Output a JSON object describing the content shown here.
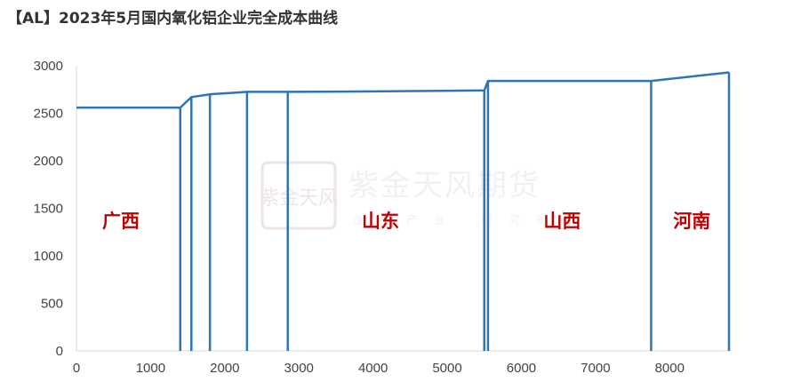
{
  "title": "【AL】2023年5月国内氧化铝企业完全成本曲线",
  "watermark": {
    "logo_text": "紫金天风",
    "name": "紫金天风期货",
    "tagline": "立足产业 研究驱动"
  },
  "colors": {
    "line": "#2E75B6",
    "region_label": "#C00000",
    "axis": "#D9D9D9",
    "watermark": "#E2CFCF"
  },
  "chart_data": {
    "type": "line",
    "title": "【AL】2023年5月国内氧化铝企业完全成本曲线",
    "xlabel": "",
    "ylabel": "",
    "xlim": [
      0,
      8800
    ],
    "ylim": [
      0,
      3000
    ],
    "x_ticks": [
      0,
      1000,
      2000,
      3000,
      4000,
      5000,
      6000,
      7000,
      8000
    ],
    "x_tick_labels": [
      "0",
      "1000",
      "2000",
      "3000",
      "4000",
      "5000",
      "6000",
      "7000",
      "8000"
    ],
    "y_ticks": [
      0,
      500,
      1000,
      1500,
      2000,
      2500,
      3000
    ],
    "y_tick_labels": [
      "0",
      "500",
      "1000",
      "1500",
      "2000",
      "2500",
      "3000"
    ],
    "grid": false,
    "series": [
      {
        "points": [
          [
            0,
            2560
          ],
          [
            1400,
            2560
          ],
          [
            1550,
            2670
          ],
          [
            1800,
            2700
          ],
          [
            2300,
            2725
          ],
          [
            2850,
            2725
          ],
          [
            4000,
            2730
          ],
          [
            5500,
            2740
          ],
          [
            5550,
            2840
          ],
          [
            7750,
            2840
          ],
          [
            8800,
            2930
          ]
        ]
      }
    ],
    "drop_lines_x": [
      1400,
      1550,
      1800,
      2300,
      2850,
      5500,
      5550,
      7750,
      8800
    ],
    "region_labels": [
      {
        "text": "广西",
        "x": 600,
        "y": 1300
      },
      {
        "text": "山东",
        "x": 4100,
        "y": 1300
      },
      {
        "text": "山西",
        "x": 6550,
        "y": 1300
      },
      {
        "text": "河南",
        "x": 8300,
        "y": 1300
      }
    ]
  }
}
